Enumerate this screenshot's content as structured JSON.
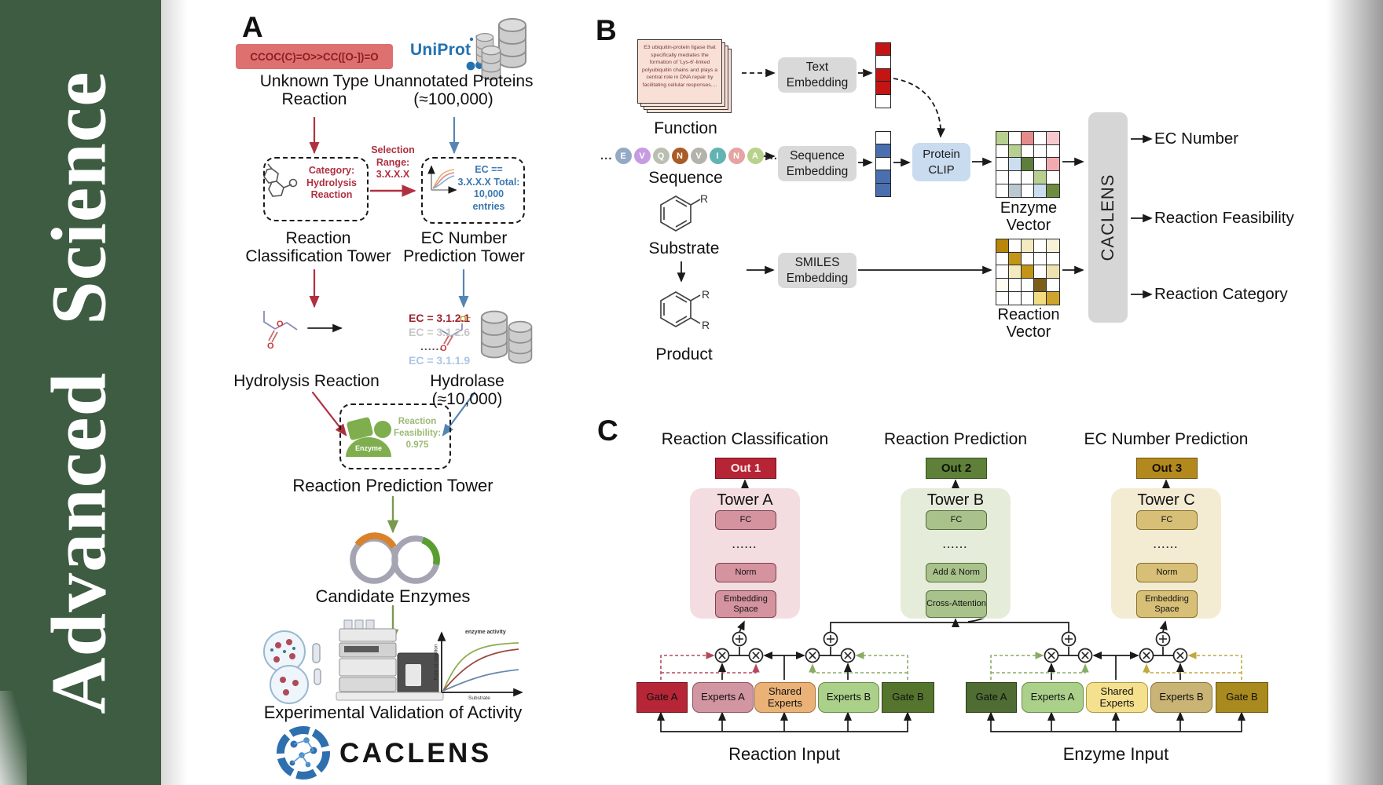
{
  "journal": {
    "name": "Advanced Science"
  },
  "colors": {
    "sidebar_green": "#3d5c42",
    "smiles_red_bg": "#de7070",
    "arrow_red": "#b03040",
    "arrow_blue": "#5585b5",
    "arrow_green": "#7a9a50",
    "uniprot_blue": "#2272b2",
    "feasibility_green": "#9cba74",
    "clip_blue": "#c9dbee",
    "gray_box": "#d9d9d9",
    "out1": "#b52536",
    "out2": "#5f8038",
    "out3": "#b3891e",
    "towerA_bg": "#f3dde0",
    "towerB_bg": "#e5ecda",
    "towerC_bg": "#f3ecd3",
    "gateA_left": "#b62637",
    "expertsA_left": "#d295a2",
    "shared_left": "#eab277",
    "expertsB_left": "#abd08a",
    "gateB_left": "#55742e",
    "gateA_right": "#4f6c33",
    "expertsA_right": "#abd08a",
    "shared_right": "#f5e08e",
    "expertsB_right": "#c9b475",
    "gateB_right": "#a98a1f"
  },
  "panelA": {
    "label": "A",
    "smiles_box": "CCOC(C)=O>>CC([O-])=O",
    "unknown_reaction": "Unknown Type Reaction",
    "uniprot": "UniProt",
    "unannotated": "Unannotated Proteins (≈100,000)",
    "category": "Category: Hydrolysis Reaction",
    "selection": "Selection Range: 3.X.X.X",
    "ec_filter": "EC == 3.X.X.X Total: 10,000 entries",
    "tower1": "Reaction Classification Tower",
    "tower2": "EC Number Prediction Tower",
    "ec_items": [
      "EC = 3.1.2.1",
      "EC = 3.1.2.6",
      "......",
      "EC = 3.1.1.9"
    ],
    "hydrolysis": "Hydrolysis Reaction",
    "hydrolase": "Hydrolase (≈10,000)",
    "enzyme": "Enzyme",
    "feasibility": "Reaction Feasibility: 0.975",
    "tower3": "Reaction Prediction Tower",
    "candidates": "Candidate Enzymes",
    "validation": "Experimental Validation of Activity",
    "brand": "CACLENS",
    "plot": {
      "annotation": "enzyme activity",
      "ylabel": "Rate of reaction",
      "xlabel": "Substrate"
    }
  },
  "panelB": {
    "label": "B",
    "function_text": "E3 ubiquitin-protein ligase that specifically mediates the formation of 'Lys-6'-linked polyubiquitin chains and plays a central role in DNA repair by facilitating cellular responses....",
    "function": "Function",
    "sequence": "Sequence",
    "substrate": "Substrate",
    "product": "Product",
    "r_label": "R",
    "ellipsis": "...",
    "sequence_letters": [
      "E",
      "V",
      "Q",
      "N",
      "V",
      "I",
      "N",
      "A"
    ],
    "sequence_colors": [
      "#93a9c6",
      "#c79be1",
      "#b9c0b1",
      "#a95c28",
      "#b3b3ab",
      "#62b4b4",
      "#e5a3a3",
      "#b8d28c"
    ],
    "text_embedding": "Text Embedding",
    "sequence_embedding": "Sequence Embedding",
    "smiles_embedding": "SMILES Embedding",
    "protein_clip": "Protein CLIP",
    "enzyme_vector": "Enzyme Vector",
    "reaction_vector": "Reaction Vector",
    "caclens": "CACLENS",
    "outputs": [
      "EC Number",
      "Reaction Feasibility",
      "Reaction Category"
    ],
    "text_vector": [
      "#c41414",
      "#ffffff",
      "#c41414",
      "#c41414",
      "#ffffff"
    ],
    "seq_vector": [
      "#ffffff",
      "#4a6fae",
      "#ffffff",
      "#4a6fae",
      "#4a6fae"
    ],
    "enzyme_grid": [
      [
        "#b7d08f",
        "#ffffff",
        "#e58b8b",
        "#ffffff",
        "#f6c9ce"
      ],
      [
        "#ffffff",
        "#b7d08f",
        "#ffffff",
        "#ffffff",
        "#ffffff"
      ],
      [
        "#ffffff",
        "#cdddf0",
        "#5e7f3c",
        "#ffffff",
        "#f2aab0"
      ],
      [
        "#ffffff",
        "#ffffff",
        "#ffffff",
        "#b7d08f",
        "#ffffff"
      ],
      [
        "#ffffff",
        "#bcc8d0",
        "#ffffff",
        "#cdddf0",
        "#6d8c3f"
      ]
    ],
    "reaction_grid": [
      [
        "#b8860b",
        "#ffffff",
        "#f3eac2",
        "#ffffff",
        "#f8f2d8"
      ],
      [
        "#ffffff",
        "#c39516",
        "#ffffff",
        "#ffffff",
        "#ffffff"
      ],
      [
        "#ffffff",
        "#f3eac2",
        "#c39516",
        "#ffffff",
        "#efe2b0"
      ],
      [
        "#fdfbf2",
        "#ffffff",
        "#ffffff",
        "#7c5f17",
        "#ffffff"
      ],
      [
        "#ffffff",
        "#ffffff",
        "#ffffff",
        "#f2dc82",
        "#cfa42c"
      ]
    ]
  },
  "panelC": {
    "label": "C",
    "headers": [
      "Reaction Classification",
      "Reaction Prediction",
      "EC Number Prediction"
    ],
    "outs": [
      "Out 1",
      "Out 2",
      "Out 3"
    ],
    "towers": [
      {
        "name": "Tower A",
        "layers": [
          "FC",
          "......",
          "Norm",
          "Embedding Space"
        ]
      },
      {
        "name": "Tower B",
        "layers": [
          "FC",
          "......",
          "Add & Norm",
          "Cross-Attention"
        ]
      },
      {
        "name": "Tower C",
        "layers": [
          "FC",
          "......",
          "Norm",
          "Embedding Space"
        ]
      }
    ],
    "groups": [
      {
        "gate_a": "Gate A",
        "experts_a": "Experts A",
        "shared": "Shared Experts",
        "experts_b": "Experts B",
        "gate_b": "Gate B",
        "input": "Reaction Input"
      },
      {
        "gate_a": "Gate A",
        "experts_a": "Experts A",
        "shared": "Shared Experts",
        "experts_b": "Experts B",
        "gate_b": "Gate B",
        "input": "Enzyme Input"
      }
    ]
  }
}
